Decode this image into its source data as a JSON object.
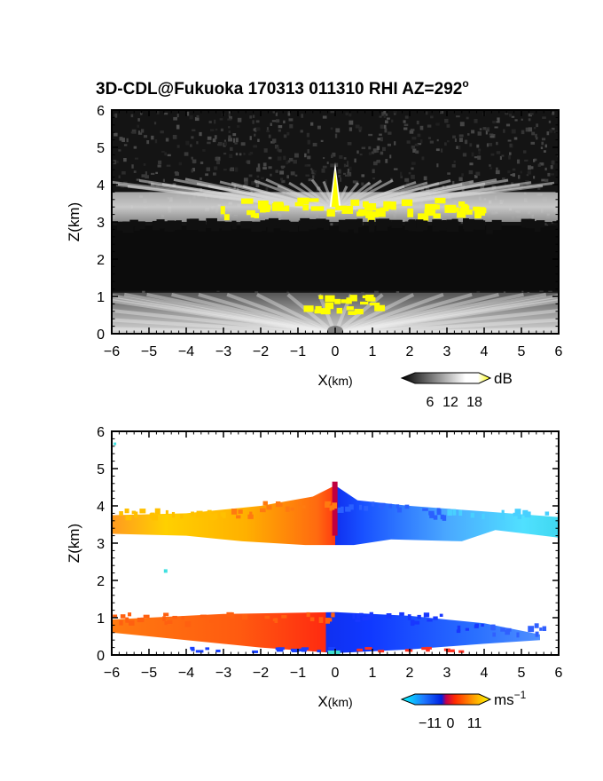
{
  "title": "3D-CDL@Fukuoka 170313 011310 RHI AZ=292",
  "title_superscript": "o",
  "chart_data": [
    {
      "type": "heatmap",
      "panel": "top",
      "quantity": "backscatter intensity",
      "xlabel_main": "X",
      "xlabel_unit": "(km)",
      "ylabel": "Z(km)",
      "xlim": [
        -6,
        6
      ],
      "ylim": [
        0,
        6
      ],
      "xticks": [
        "−6",
        "−5",
        "−4",
        "−3",
        "−2",
        "−1",
        "0",
        "1",
        "2",
        "3",
        "4",
        "5",
        "6"
      ],
      "yticks": [
        "0",
        "1",
        "2",
        "3",
        "4",
        "5",
        "6"
      ],
      "colorbar": {
        "unit": "dB",
        "ticks": [
          "6",
          "12",
          "18"
        ],
        "colors": [
          "#000000",
          "#ffffff",
          "#ffff00"
        ]
      },
      "features": [
        {
          "name": "cloud layer",
          "z_range": [
            3.0,
            3.8
          ],
          "x_range": [
            -6,
            6
          ],
          "peak_top_km": 4.6,
          "peak_x_km": 0
        },
        {
          "name": "boundary layer",
          "z_range": [
            0.0,
            1.1
          ],
          "x_range": [
            -6,
            6
          ]
        }
      ]
    },
    {
      "type": "heatmap",
      "panel": "bottom",
      "quantity": "Doppler velocity",
      "xlabel_main": "X",
      "xlabel_unit": "(km)",
      "ylabel": "Z(km)",
      "xlim": [
        -6,
        6
      ],
      "ylim": [
        0,
        6
      ],
      "xticks": [
        "−6",
        "−5",
        "−4",
        "−3",
        "−2",
        "−1",
        "0",
        "1",
        "2",
        "3",
        "4",
        "5",
        "6"
      ],
      "yticks": [
        "0",
        "1",
        "2",
        "3",
        "4",
        "5",
        "6"
      ],
      "colorbar": {
        "unit": "ms",
        "unit_exponent": "−1",
        "ticks": [
          "−11",
          "0",
          "11"
        ],
        "range": [
          -11,
          11
        ]
      },
      "features": [
        {
          "name": "cloud layer",
          "z_range": [
            3.0,
            4.6
          ],
          "x_range": [
            -6,
            6
          ],
          "negative_x_velocity": "positive (orange-yellow)",
          "positive_x_velocity": "negative (blue-cyan)"
        },
        {
          "name": "boundary layer",
          "z_range": [
            0.0,
            1.2
          ],
          "x_range": [
            -6,
            5.5
          ],
          "negative_x_velocity": "positive (orange-red)",
          "positive_x_velocity": "negative (blue)"
        }
      ]
    }
  ]
}
